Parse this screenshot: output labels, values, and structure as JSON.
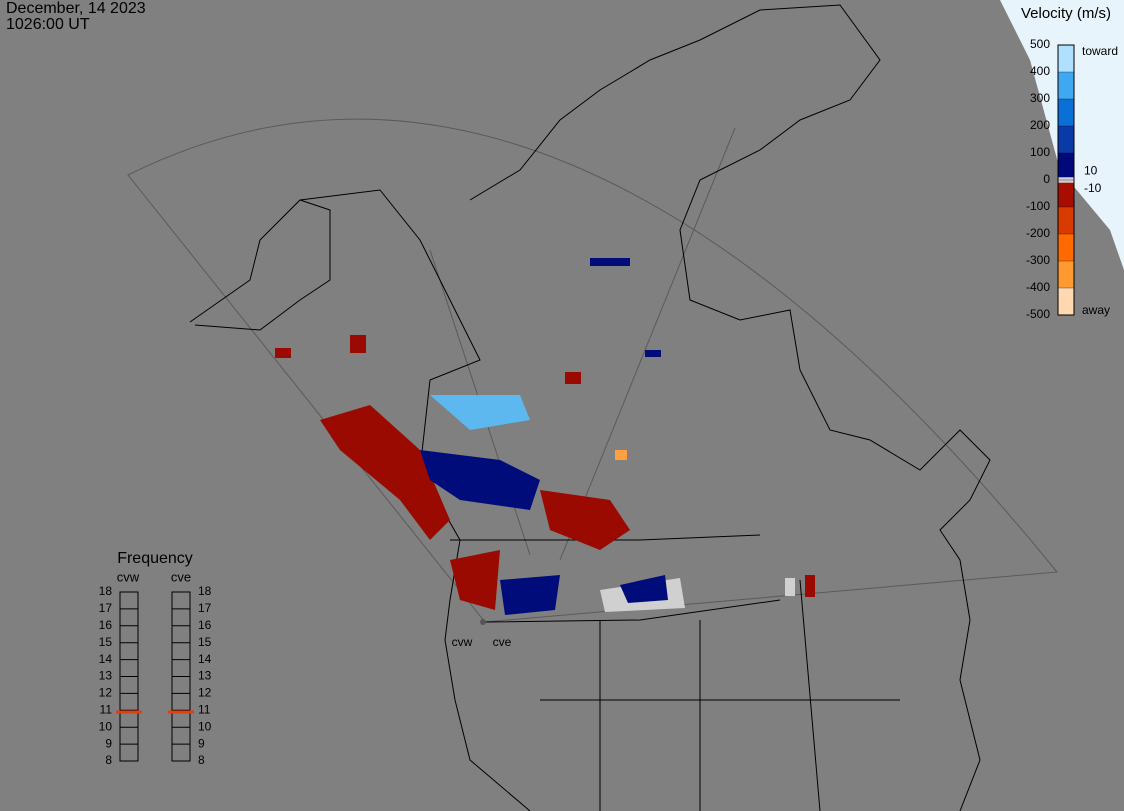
{
  "header": {
    "date": "December, 14 2023",
    "time": "1026:00 UT"
  },
  "velocity_scale": {
    "title": "Velocity (m/s)",
    "ylim": [
      -500,
      500
    ],
    "yticks": [
      -500,
      -400,
      -300,
      -200,
      -100,
      0,
      100,
      200,
      300,
      400,
      500
    ],
    "toward": "toward",
    "away": "away",
    "upper_limit": 10,
    "lower_limit": -10
  },
  "frequency": {
    "title": "Frequency",
    "radars": [
      "cvw",
      "cve"
    ],
    "ylim": [
      8,
      18
    ],
    "yticks": [
      8,
      9,
      10,
      11,
      12,
      13,
      14,
      15,
      16,
      17,
      18
    ],
    "values": [
      10.9,
      10.9
    ]
  }
}
